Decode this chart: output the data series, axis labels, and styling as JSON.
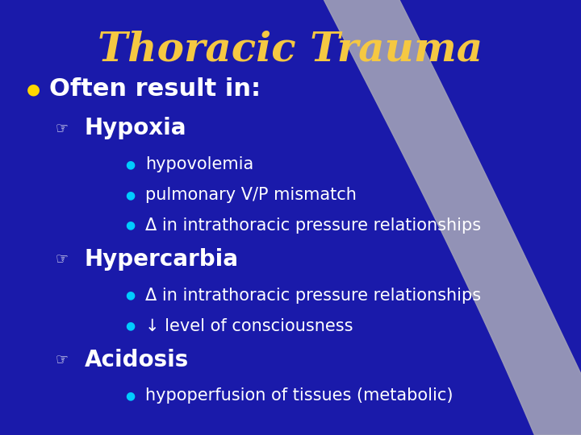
{
  "title": "Thoracic Trauma",
  "title_color": "#F5C842",
  "title_fontsize": 36,
  "bg_color": "#1a1aaa",
  "text_color": "#ffffff",
  "bullet_color": "#FFD700",
  "sub_bullet_color": "#00CCFF",
  "subsub_fontsize": 15,
  "gray_curve_color": "#a0a0b8",
  "level1": [
    {
      "text": "Often result in:",
      "bold": true,
      "fontsize": 22
    }
  ],
  "level2": [
    {
      "text": "Hypoxia",
      "bold": true,
      "fontsize": 20,
      "items": [
        "hypovolemia",
        "pulmonary V/P mismatch",
        "Δ in intrathoracic pressure relationships"
      ]
    },
    {
      "text": "Hypercarbia",
      "bold": true,
      "fontsize": 20,
      "items": [
        "Δ in intrathoracic pressure relationships",
        "↓ level of consciousness"
      ]
    },
    {
      "text": "Acidosis",
      "bold": true,
      "fontsize": 20,
      "items": [
        "hypoperfusion of tissues (metabolic)"
      ]
    }
  ]
}
